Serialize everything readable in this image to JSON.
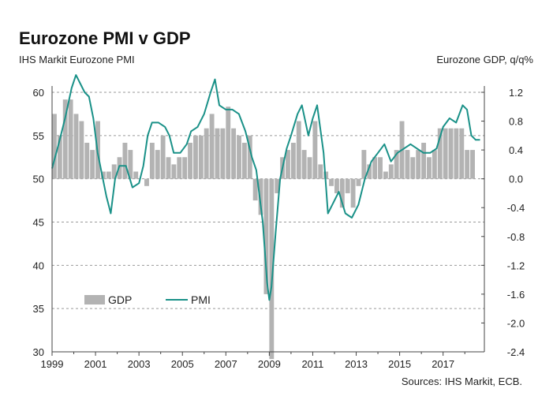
{
  "chart_data": {
    "type": "bar+line",
    "title": "Eurozone PMI v GDP",
    "left_axis_label": "IHS Markit Eurozone PMI",
    "right_axis_label": "Eurozone GDP, q/q%",
    "source": "Sources: IHS Markit, ECB.",
    "left_axis": {
      "min": 30,
      "max": 60,
      "ticks": [
        "30",
        "35",
        "40",
        "45",
        "50",
        "55",
        "60"
      ]
    },
    "right_axis": {
      "min": -2.4,
      "max": 1.2,
      "ticks": [
        "-2.4",
        "-2.0",
        "-1.6",
        "-1.2",
        "-0.8",
        "-0.4",
        "0.0",
        "0.4",
        "0.8",
        "1.2"
      ]
    },
    "x_axis": {
      "min": 1999,
      "max": 2018.9,
      "ticks": [
        "1999",
        "2001",
        "2003",
        "2005",
        "2007",
        "2009",
        "2011",
        "2013",
        "2015",
        "2017"
      ]
    },
    "grid": "horizontal dashed",
    "legend": {
      "position": "lower-left",
      "gdp_label": "GDP",
      "pmi_label": "PMI"
    },
    "series": [
      {
        "name": "GDP",
        "kind": "bar",
        "axis": "right",
        "color": "#b3b3b3",
        "x": [
          1999.0,
          1999.25,
          1999.5,
          1999.75,
          2000.0,
          2000.25,
          2000.5,
          2000.75,
          2001.0,
          2001.25,
          2001.5,
          2001.75,
          2002.0,
          2002.25,
          2002.5,
          2002.75,
          2003.0,
          2003.25,
          2003.5,
          2003.75,
          2004.0,
          2004.25,
          2004.5,
          2004.75,
          2005.0,
          2005.25,
          2005.5,
          2005.75,
          2006.0,
          2006.25,
          2006.5,
          2006.75,
          2007.0,
          2007.25,
          2007.5,
          2007.75,
          2008.0,
          2008.25,
          2008.5,
          2008.75,
          2009.0,
          2009.25,
          2009.5,
          2009.75,
          2010.0,
          2010.25,
          2010.5,
          2010.75,
          2011.0,
          2011.25,
          2011.5,
          2011.75,
          2012.0,
          2012.25,
          2012.5,
          2012.75,
          2013.0,
          2013.25,
          2013.5,
          2013.75,
          2014.0,
          2014.25,
          2014.5,
          2014.75,
          2015.0,
          2015.25,
          2015.5,
          2015.75,
          2016.0,
          2016.25,
          2016.5,
          2016.75,
          2017.0,
          2017.25,
          2017.5,
          2017.75,
          2018.0,
          2018.25
        ],
        "values": [
          0.9,
          0.6,
          1.1,
          1.1,
          0.9,
          0.8,
          0.5,
          0.4,
          0.8,
          0.1,
          0.1,
          0.2,
          0.3,
          0.5,
          0.4,
          0.1,
          0.0,
          -0.1,
          0.5,
          0.4,
          0.6,
          0.3,
          0.2,
          0.3,
          0.3,
          0.5,
          0.6,
          0.6,
          0.7,
          0.9,
          0.7,
          0.7,
          1.0,
          0.7,
          0.6,
          0.5,
          0.6,
          -0.3,
          -0.5,
          -1.6,
          -2.5,
          -0.2,
          0.3,
          0.4,
          0.5,
          0.8,
          0.4,
          0.3,
          0.8,
          0.2,
          0.1,
          -0.1,
          -0.2,
          -0.4,
          -0.2,
          -0.4,
          -0.1,
          0.4,
          0.2,
          0.3,
          0.3,
          0.1,
          0.2,
          0.4,
          0.8,
          0.4,
          0.3,
          0.4,
          0.5,
          0.3,
          0.4,
          0.7,
          0.7,
          0.7,
          0.7,
          0.7,
          0.4,
          0.4
        ]
      },
      {
        "name": "PMI",
        "kind": "line",
        "axis": "left",
        "color": "#1a9188",
        "x": [
          1999.0,
          1999.3,
          1999.6,
          1999.9,
          2000.1,
          2000.3,
          2000.5,
          2000.7,
          2000.9,
          2001.1,
          2001.3,
          2001.5,
          2001.7,
          2001.9,
          2002.1,
          2002.4,
          2002.7,
          2003.0,
          2003.2,
          2003.4,
          2003.6,
          2003.9,
          2004.2,
          2004.4,
          2004.6,
          2004.9,
          2005.2,
          2005.4,
          2005.7,
          2006.0,
          2006.3,
          2006.5,
          2006.7,
          2007.0,
          2007.3,
          2007.6,
          2007.9,
          2008.2,
          2008.4,
          2008.7,
          2008.9,
          2009.0,
          2009.1,
          2009.3,
          2009.5,
          2009.8,
          2010.0,
          2010.3,
          2010.5,
          2010.8,
          2011.0,
          2011.2,
          2011.5,
          2011.7,
          2012.0,
          2012.2,
          2012.5,
          2012.8,
          2013.1,
          2013.4,
          2013.7,
          2014.0,
          2014.3,
          2014.6,
          2014.9,
          2015.2,
          2015.5,
          2015.8,
          2016.1,
          2016.4,
          2016.7,
          2017.0,
          2017.3,
          2017.6,
          2017.9,
          2018.1,
          2018.3,
          2018.5,
          2018.7
        ],
        "values": [
          51.2,
          54.0,
          57.0,
          60.5,
          62.0,
          61.0,
          60.0,
          59.5,
          57.0,
          53.0,
          50.5,
          48.0,
          46.0,
          50.0,
          51.5,
          51.5,
          49.0,
          49.5,
          51.5,
          55.0,
          56.5,
          56.5,
          56.0,
          55.0,
          53.0,
          53.0,
          54.0,
          55.5,
          56.0,
          57.5,
          60.0,
          61.5,
          58.5,
          58.0,
          58.0,
          57.5,
          55.5,
          52.5,
          51.0,
          45.0,
          38.0,
          36.0,
          37.5,
          44.0,
          50.0,
          53.5,
          55.0,
          57.5,
          58.5,
          55.0,
          57.0,
          58.5,
          53.0,
          46.0,
          47.5,
          48.5,
          46.0,
          45.5,
          47.0,
          50.0,
          52.0,
          53.0,
          54.0,
          52.0,
          53.0,
          53.5,
          54.0,
          53.5,
          53.0,
          53.0,
          53.5,
          56.0,
          57.0,
          56.5,
          58.5,
          58.0,
          55.0,
          54.5,
          54.5
        ]
      }
    ]
  }
}
